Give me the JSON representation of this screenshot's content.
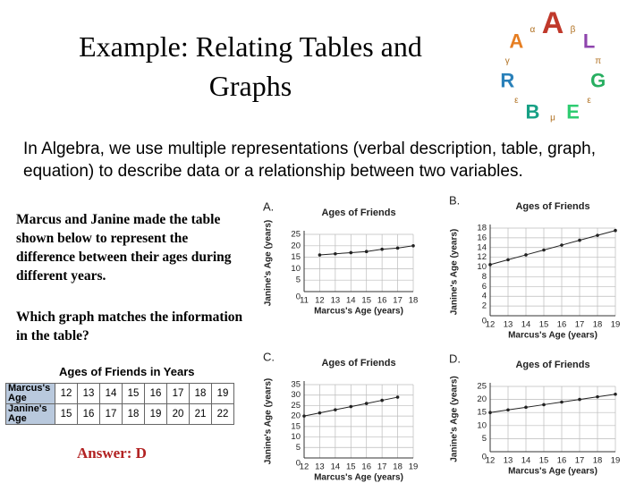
{
  "title": "Example: Relating Tables and Graphs",
  "logo_letters": [
    "A",
    "L",
    "G",
    "E",
    "B",
    "R",
    "A"
  ],
  "logo_symbols": [
    "β",
    "π",
    "ε",
    "μ",
    "ε",
    "γ",
    "α"
  ],
  "intro": "In Algebra, we use multiple representations (verbal description, table, graph, equation) to describe data or a relationship between two variables.",
  "problem": "Marcus and Janine made the table shown below to represent the difference between their ages during different years.",
  "question": "Which graph matches the information in the table?",
  "table": {
    "title": "Ages of Friends in Years",
    "rows": [
      [
        "Marcus's Age",
        12,
        13,
        14,
        15,
        16,
        17,
        18,
        19
      ],
      [
        "Janine's Age",
        15,
        16,
        17,
        18,
        19,
        20,
        21,
        22
      ]
    ]
  },
  "answer": "Answer: D",
  "chart_data": [
    {
      "type": "line",
      "letter": "A.",
      "title": "Ages of Friends",
      "xlabel": "Marcus's Age (years)",
      "ylabel": "Janine's Age (years)",
      "x": [
        12,
        13,
        14,
        15,
        16,
        17,
        18
      ],
      "values": [
        16,
        16.5,
        17,
        17.5,
        18.5,
        19,
        20
      ],
      "xlim": [
        11,
        18
      ],
      "xticks": [
        11,
        12,
        13,
        14,
        15,
        16,
        17,
        18
      ],
      "ylim": [
        0,
        25
      ],
      "yticks": [
        0,
        5,
        10,
        15,
        20,
        25
      ],
      "grid": true,
      "color": "#222222"
    },
    {
      "type": "line",
      "letter": "B.",
      "title": "Ages of Friends",
      "xlabel": "Marcus's Age (years)",
      "ylabel": "Janine's Age (years)",
      "x": [
        12,
        13,
        14,
        15,
        16,
        17,
        18,
        19
      ],
      "values": [
        10.5,
        11.5,
        12.5,
        13.5,
        14.5,
        15.5,
        16.5,
        17.5
      ],
      "xlim": [
        12,
        19
      ],
      "xticks": [
        12,
        13,
        14,
        15,
        16,
        17,
        18,
        19
      ],
      "ylim": [
        0,
        18
      ],
      "yticks": [
        0,
        2,
        4,
        6,
        8,
        10,
        12,
        14,
        16,
        18
      ],
      "grid": true,
      "color": "#222222"
    },
    {
      "type": "line",
      "letter": "C.",
      "title": "Ages of Friends",
      "xlabel": "Marcus's Age (years)",
      "ylabel": "Janine's Age (years)",
      "x": [
        12,
        13,
        14,
        15,
        16,
        17,
        18
      ],
      "values": [
        20,
        21.5,
        23,
        24.5,
        26,
        27.5,
        29
      ],
      "xlim": [
        12,
        19
      ],
      "xticks": [
        12,
        13,
        14,
        15,
        16,
        17,
        18,
        19
      ],
      "ylim": [
        0,
        35
      ],
      "yticks": [
        0,
        5,
        10,
        15,
        20,
        25,
        30,
        35
      ],
      "grid": true,
      "color": "#222222"
    },
    {
      "type": "line",
      "letter": "D.",
      "title": "Ages of Friends",
      "xlabel": "Marcus's Age (years)",
      "ylabel": "Janine's Age (years)",
      "x": [
        12,
        13,
        14,
        15,
        16,
        17,
        18,
        19
      ],
      "values": [
        15,
        16,
        17,
        18,
        19,
        20,
        21,
        22
      ],
      "xlim": [
        12,
        19
      ],
      "xticks": [
        12,
        13,
        14,
        15,
        16,
        17,
        18,
        19
      ],
      "ylim": [
        0,
        25
      ],
      "yticks": [
        0,
        5,
        10,
        15,
        20,
        25
      ],
      "grid": true,
      "color": "#222222"
    }
  ]
}
